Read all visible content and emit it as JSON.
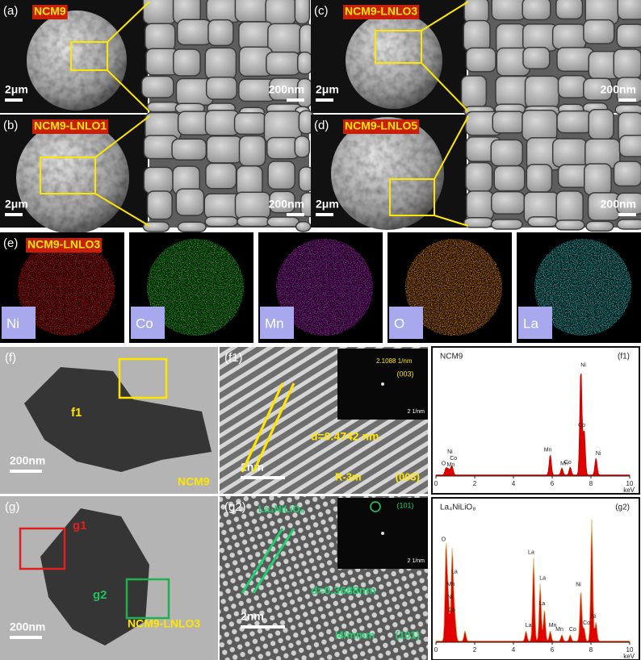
{
  "figure": {
    "sem": [
      {
        "label": "(a)",
        "sample": "NCM9",
        "scale_overview": "2μm",
        "scale_zoom": "200nm"
      },
      {
        "label": "(c)",
        "sample": "NCM9-LNLO3",
        "scale_overview": "2μm",
        "scale_zoom": "200nm"
      },
      {
        "label": "(b)",
        "sample": "NCM9-LNLO1",
        "scale_overview": "2μm",
        "scale_zoom": "200nm"
      },
      {
        "label": "(d)",
        "sample": "NCM9-LNLO5",
        "scale_overview": "2μm",
        "scale_zoom": "200nm"
      }
    ],
    "mapping": {
      "label": "(e)",
      "sample": "NCM9-LNLO3",
      "elements": [
        "Ni",
        "Co",
        "Mn",
        "O",
        "La"
      ]
    },
    "tem": [
      {
        "label": "(f)",
        "regions": [
          "f1"
        ],
        "scale": "200nm",
        "sample": "NCM9"
      },
      {
        "label": "(g)",
        "regions": [
          "g1",
          "g2"
        ],
        "scale": "200nm",
        "sample": "NCM9-LNLO3"
      }
    ],
    "hrtem": [
      {
        "label": "(f1)",
        "fft_spacing": "2.1088 1/nm",
        "fft_plane": "(003)",
        "fft_scale": "2 1/nm",
        "d_spacing": "d=0.4742 nm",
        "scale": "2nm",
        "space_group": "R-3m",
        "plane": "(003)"
      },
      {
        "label": "(g2)",
        "phase": "La₄NiLiO₈",
        "fft_plane": "(101)",
        "fft_scale": "2 1/nm",
        "d_spacing": "d=0.3688nm",
        "scale": "2nm",
        "space_group": "I4/mmm",
        "plane": "(101)"
      }
    ],
    "eds": [
      {
        "title": "NCM9",
        "tag": "(f1)",
        "peaks": [
          "O",
          "Co",
          "Ni",
          "Mn",
          "Mn",
          "Mn",
          "Co",
          "Ni",
          "Co",
          "Ni"
        ],
        "xticks": [
          0,
          2,
          4,
          6,
          8,
          10
        ],
        "unit": "keV"
      },
      {
        "title": "La₄NiLiO₈",
        "tag": "(g2)",
        "peaks": [
          "O",
          "Mn",
          "Ni",
          "La",
          "Co",
          "La",
          "La",
          "La",
          "La",
          "Mn",
          "Mn",
          "Co",
          "Ni",
          "Co",
          "Ni"
        ],
        "xticks": [
          0,
          2,
          4,
          6,
          8,
          10
        ],
        "unit": "keV"
      }
    ]
  }
}
